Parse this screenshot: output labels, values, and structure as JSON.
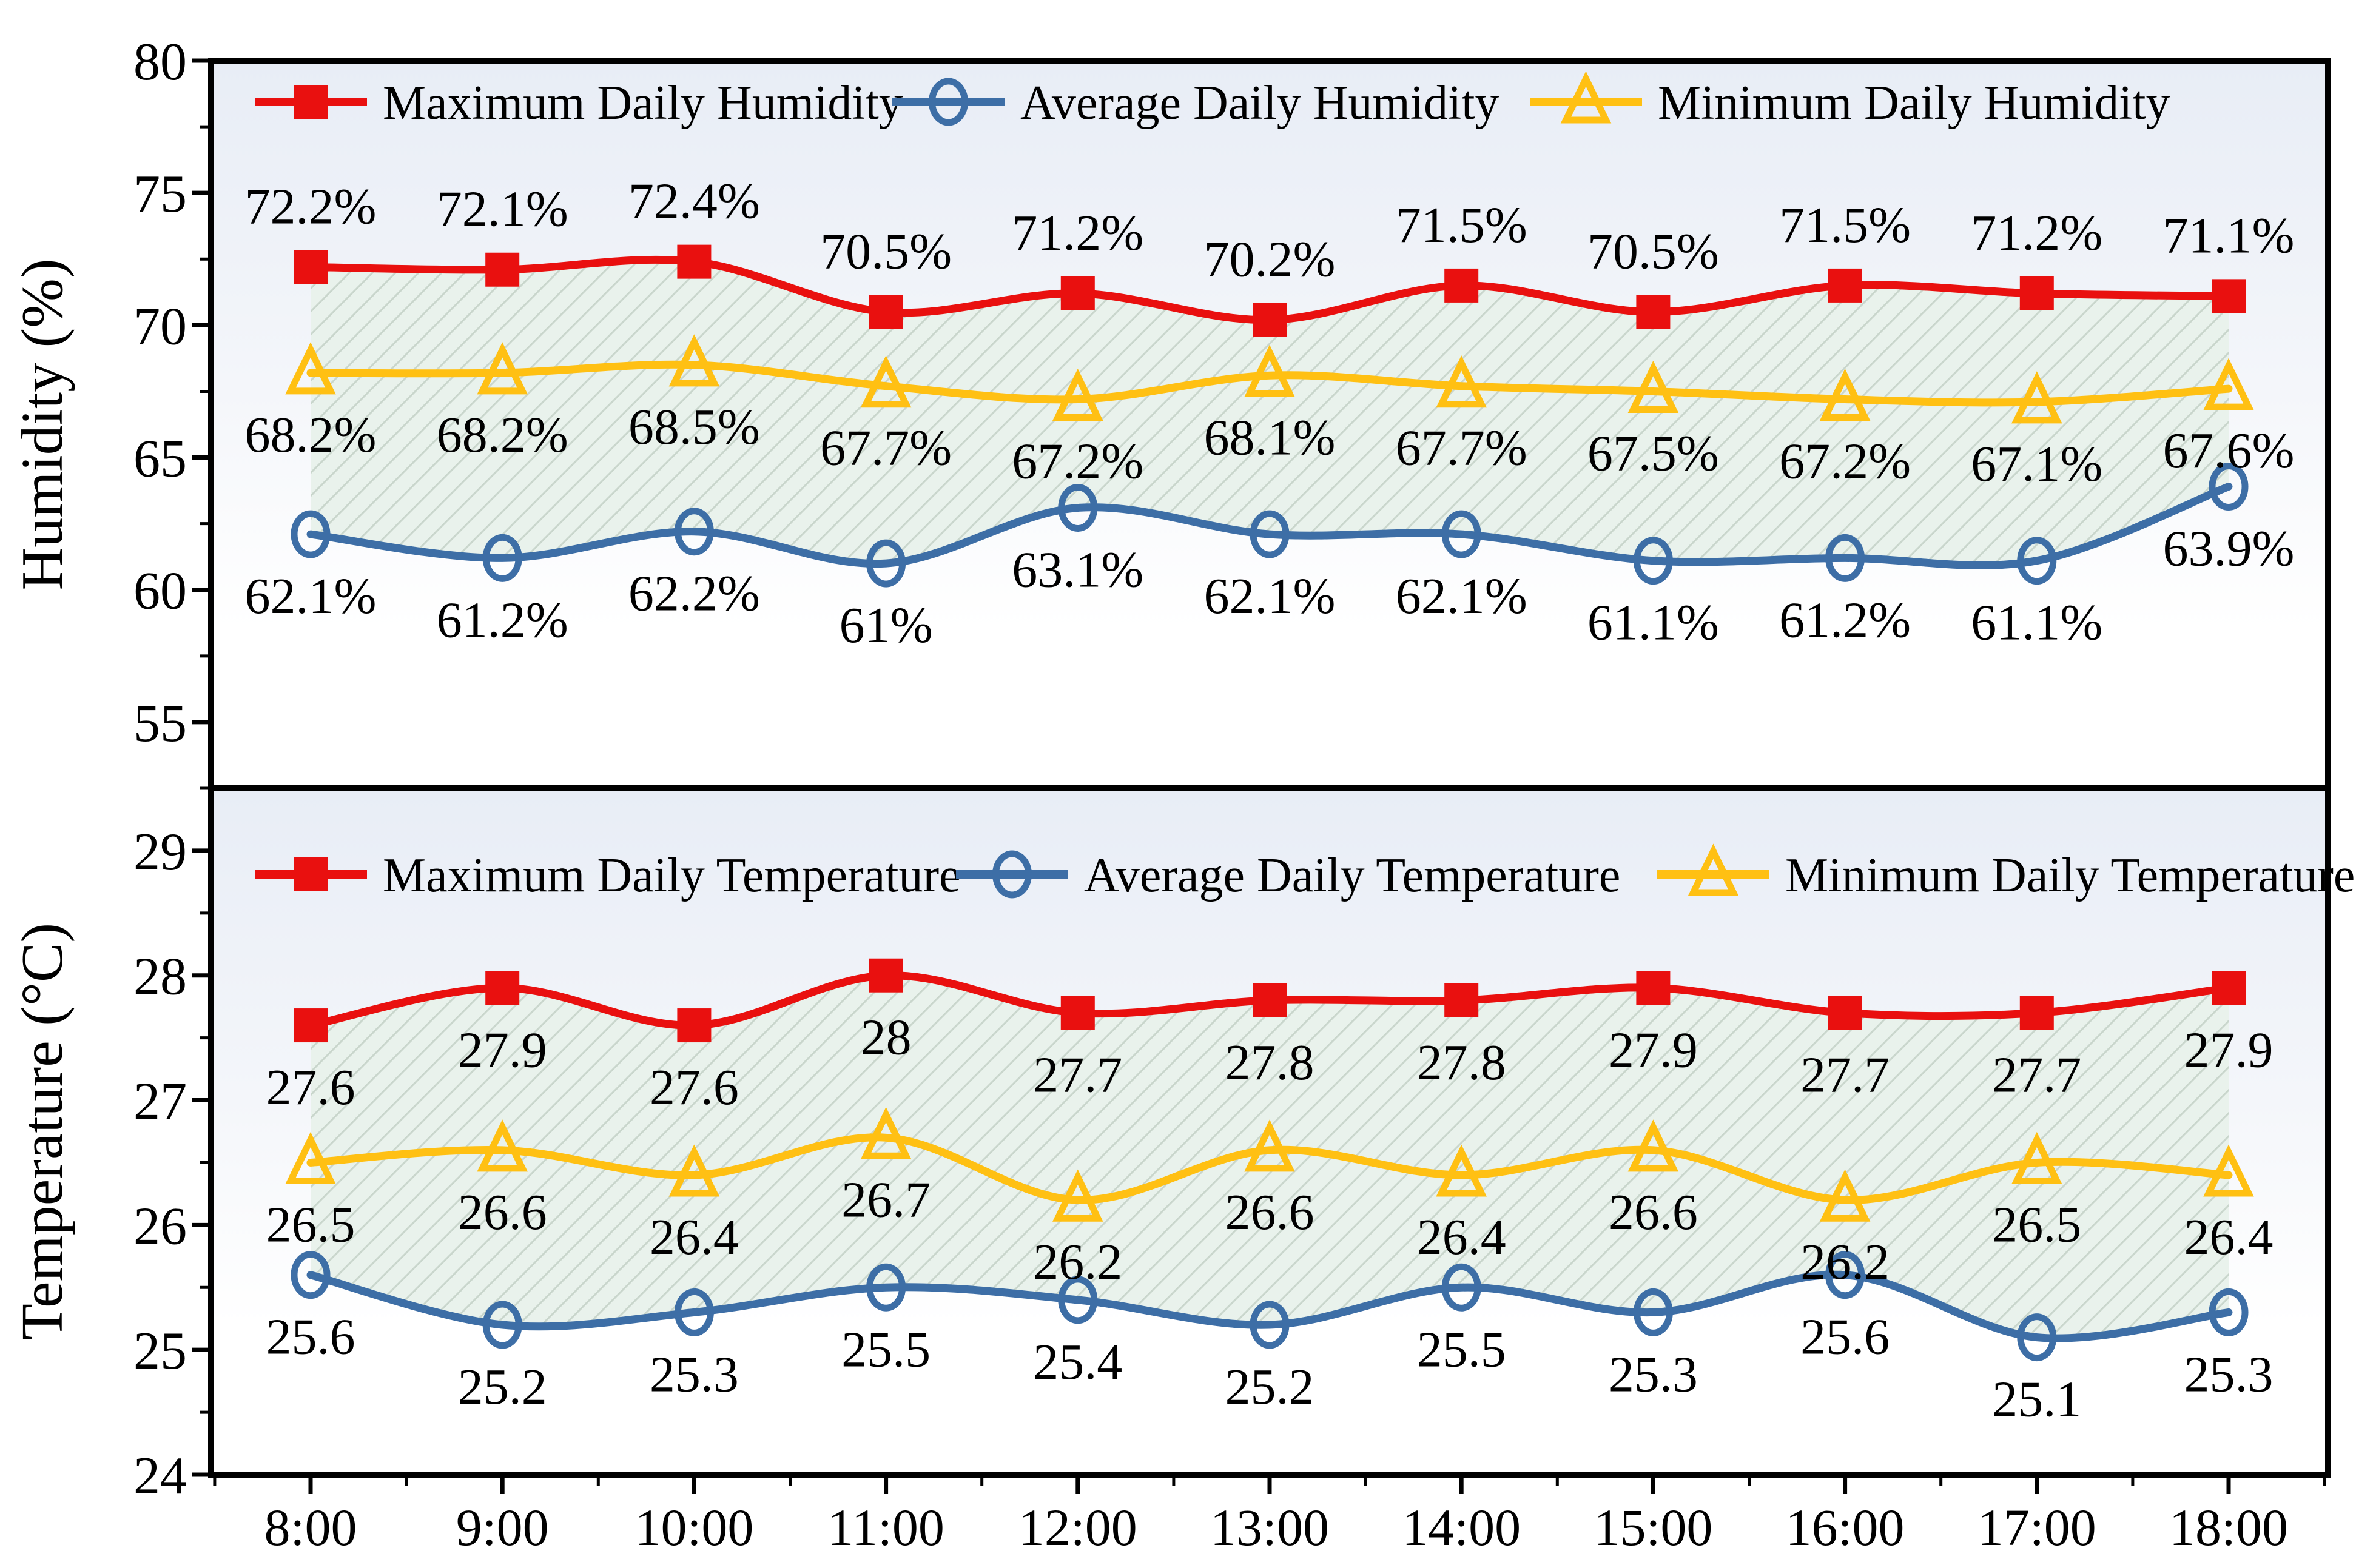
{
  "page": {
    "background": "#ffffff"
  },
  "colors": {
    "max": "#e9100f",
    "avg": "#3d6ea6",
    "min": "#ffc013",
    "fill": "#e9f2ec",
    "hatch": "#c9d6cc",
    "panel_gradient_top": "#e8edf6",
    "panel_gradient_bottom": "#ffffff",
    "axis": "#000000",
    "text": "#000000"
  },
  "x_axis": {
    "labels": [
      "8:00",
      "9:00",
      "10:00",
      "11:00",
      "12:00",
      "13:00",
      "14:00",
      "15:00",
      "16:00",
      "17:00",
      "18:00"
    ]
  },
  "chart_data": [
    {
      "type": "line",
      "panel": "humidity",
      "ylabel": "Humidity (%)",
      "ylim": [
        52.5,
        80
      ],
      "yticks": [
        "55",
        "60",
        "65",
        "70",
        "75",
        "80"
      ],
      "ytick_values": [
        55,
        60,
        65,
        70,
        75,
        80
      ],
      "grid": false,
      "legend_position": "top-inside-row",
      "categories": [
        "8:00",
        "9:00",
        "10:00",
        "11:00",
        "12:00",
        "13:00",
        "14:00",
        "15:00",
        "16:00",
        "17:00",
        "18:00"
      ],
      "fill_between": [
        "Maximum Daily Humidity",
        "Average Daily Humidity"
      ],
      "series": [
        {
          "name": "Maximum Daily Humidity",
          "role": "max",
          "marker": "square",
          "label_side": "above",
          "values": [
            72.2,
            72.1,
            72.4,
            70.5,
            71.2,
            70.2,
            71.5,
            70.5,
            71.5,
            71.2,
            71.1
          ],
          "labels": [
            "72.2%",
            "72.1%",
            "72.4%",
            "70.5%",
            "71.2%",
            "70.2%",
            "71.5%",
            "70.5%",
            "71.5%",
            "71.2%",
            "71.1%"
          ]
        },
        {
          "name": "Average Daily Humidity",
          "role": "avg",
          "marker": "circle",
          "label_side": "below",
          "values": [
            62.1,
            61.2,
            62.2,
            61,
            63.1,
            62.1,
            62.1,
            61.1,
            61.2,
            61.1,
            63.9
          ],
          "labels": [
            "62.1%",
            "61.2%",
            "62.2%",
            "61%",
            "63.1%",
            "62.1%",
            "62.1%",
            "61.1%",
            "61.2%",
            "61.1%",
            "63.9%"
          ]
        },
        {
          "name": "Minimum Daily Humidity",
          "role": "min",
          "marker": "triangle",
          "label_side": "below",
          "values": [
            68.2,
            68.2,
            68.5,
            67.7,
            67.2,
            68.1,
            67.7,
            67.5,
            67.2,
            67.1,
            67.6
          ],
          "labels": [
            "68.2%",
            "68.2%",
            "68.5%",
            "67.7%",
            "67.2%",
            "68.1%",
            "67.7%",
            "67.5%",
            "67.2%",
            "67.1%",
            "67.6%"
          ]
        }
      ]
    },
    {
      "type": "line",
      "panel": "temperature",
      "ylabel": "Temperature (°C)",
      "ylim": [
        24,
        29.5
      ],
      "yticks": [
        "24",
        "25",
        "26",
        "27",
        "28",
        "29"
      ],
      "ytick_values": [
        24,
        25,
        26,
        27,
        28,
        29
      ],
      "grid": false,
      "legend_position": "top-inside-row",
      "categories": [
        "8:00",
        "9:00",
        "10:00",
        "11:00",
        "12:00",
        "13:00",
        "14:00",
        "15:00",
        "16:00",
        "17:00",
        "18:00"
      ],
      "fill_between": [
        "Maximum Daily Temperature",
        "Average Daily Temperature"
      ],
      "series": [
        {
          "name": "Maximum Daily Temperature",
          "role": "max",
          "marker": "square",
          "label_side": "below",
          "values": [
            27.6,
            27.9,
            27.6,
            28,
            27.7,
            27.8,
            27.8,
            27.9,
            27.7,
            27.7,
            27.9
          ],
          "labels": [
            "27.6",
            "27.9",
            "27.6",
            "28",
            "27.7",
            "27.8",
            "27.8",
            "27.9",
            "27.7",
            "27.7",
            "27.9"
          ]
        },
        {
          "name": "Average Daily Temperature",
          "role": "avg",
          "marker": "circle",
          "label_side": "below",
          "values": [
            25.6,
            25.2,
            25.3,
            25.5,
            25.4,
            25.2,
            25.5,
            25.3,
            25.6,
            25.1,
            25.3
          ],
          "labels": [
            "25.6",
            "25.2",
            "25.3",
            "25.5",
            "25.4",
            "25.2",
            "25.5",
            "25.3",
            "25.6",
            "25.1",
            "25.3"
          ]
        },
        {
          "name": "Minimum Daily Temperature",
          "role": "min",
          "marker": "triangle",
          "label_side": "below",
          "values": [
            26.5,
            26.6,
            26.4,
            26.7,
            26.2,
            26.6,
            26.4,
            26.6,
            26.2,
            26.5,
            26.4
          ],
          "labels": [
            "26.5",
            "26.6",
            "26.4",
            "26.7",
            "26.2",
            "26.6",
            "26.4",
            "26.6",
            "26.2",
            "26.5",
            "26.4"
          ]
        }
      ]
    }
  ]
}
